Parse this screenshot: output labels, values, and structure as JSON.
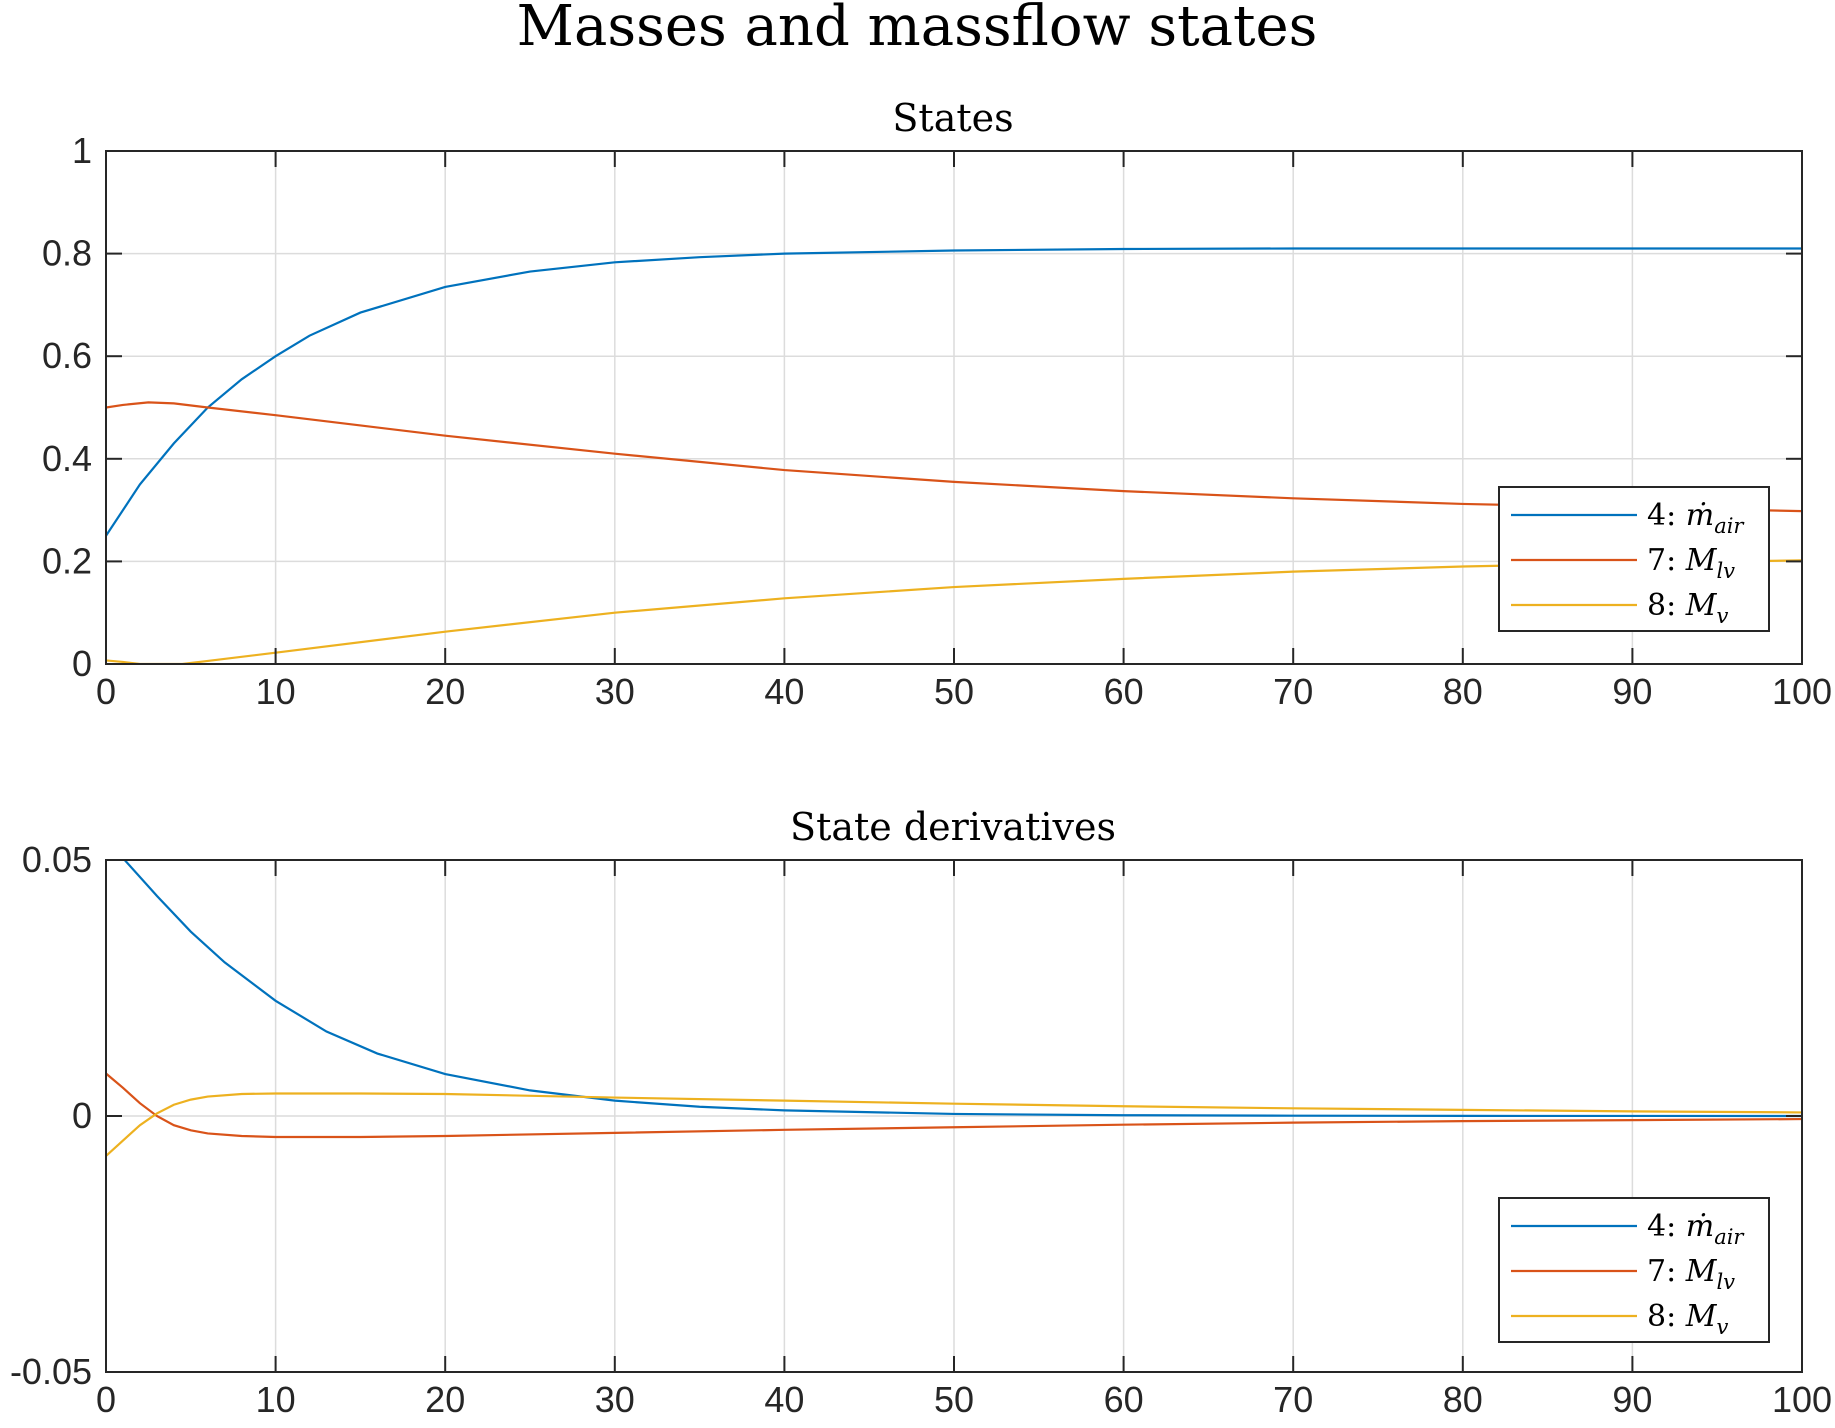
{
  "figure": {
    "suptitle": "Masses and massflow states"
  },
  "chart_data": [
    {
      "type": "line",
      "title": "States",
      "xlabel": "",
      "ylabel": "",
      "xlim": [
        0,
        100
      ],
      "ylim": [
        0,
        1
      ],
      "xticks": [
        0,
        10,
        20,
        30,
        40,
        50,
        60,
        70,
        80,
        90,
        100
      ],
      "xtick_labels": [
        "0",
        "10",
        "20",
        "30",
        "40",
        "50",
        "60",
        "70",
        "80",
        "90",
        "100"
      ],
      "yticks": [
        0,
        0.2,
        0.4,
        0.6,
        0.8,
        1
      ],
      "ytick_labels": [
        "0",
        "0.2",
        "0.4",
        "0.6",
        "0.8",
        "1"
      ],
      "grid": true,
      "legend": "right",
      "series": [
        {
          "name": "4: ṁ_air",
          "label_main": "4: ",
          "label_sym": "ṁ",
          "label_sub": "air",
          "color": "#0072BD",
          "x": [
            0,
            2,
            4,
            6,
            8,
            10,
            12,
            15,
            20,
            25,
            30,
            35,
            40,
            50,
            60,
            70,
            80,
            90,
            100
          ],
          "y": [
            0.25,
            0.35,
            0.43,
            0.5,
            0.555,
            0.6,
            0.64,
            0.685,
            0.735,
            0.765,
            0.783,
            0.793,
            0.8,
            0.806,
            0.809,
            0.81,
            0.81,
            0.81,
            0.81
          ]
        },
        {
          "name": "7: M_lv",
          "label_main": "7: ",
          "label_sym": "M",
          "label_sub": "lv",
          "color": "#D95319",
          "x": [
            0,
            1,
            2.5,
            4,
            6,
            10,
            15,
            20,
            30,
            40,
            50,
            60,
            70,
            80,
            90,
            100
          ],
          "y": [
            0.5,
            0.505,
            0.51,
            0.508,
            0.5,
            0.485,
            0.465,
            0.445,
            0.41,
            0.378,
            0.355,
            0.337,
            0.323,
            0.312,
            0.305,
            0.298
          ]
        },
        {
          "name": "8: M_v",
          "label_main": "8: ",
          "label_sym": "M",
          "label_sub": "v",
          "color": "#EDB120",
          "x": [
            0,
            1,
            2,
            4,
            4.5,
            6,
            10,
            20,
            30,
            40,
            50,
            60,
            70,
            80,
            90,
            100
          ],
          "y": [
            0.007,
            0.004,
            0,
            0,
            0,
            0.006,
            0.022,
            0.063,
            0.1,
            0.128,
            0.15,
            0.166,
            0.18,
            0.19,
            0.197,
            0.202
          ]
        }
      ]
    },
    {
      "type": "line",
      "title": "State derivatives",
      "xlabel": "",
      "ylabel": "",
      "xlim": [
        0,
        100
      ],
      "ylim": [
        -0.05,
        0.05
      ],
      "xticks": [
        0,
        10,
        20,
        30,
        40,
        50,
        60,
        70,
        80,
        90,
        100
      ],
      "xtick_labels": [
        "0",
        "10",
        "20",
        "30",
        "40",
        "50",
        "60",
        "70",
        "80",
        "90",
        "100"
      ],
      "yticks": [
        -0.05,
        0,
        0.05
      ],
      "ytick_labels": [
        "-0.05",
        "0",
        "0.05"
      ],
      "grid": true,
      "legend": "bottom-right",
      "series": [
        {
          "name": "4: ṁ_air",
          "label_main": "4: ",
          "label_sym": "ṁ",
          "label_sub": "air",
          "color": "#0072BD",
          "x": [
            1.1,
            3,
            5,
            7,
            10,
            13,
            16,
            20,
            25,
            30,
            35,
            40,
            50,
            60,
            70,
            80,
            90,
            100
          ],
          "y": [
            0.05,
            0.043,
            0.036,
            0.03,
            0.0225,
            0.0165,
            0.0122,
            0.0082,
            0.005,
            0.003,
            0.0018,
            0.0011,
            0.0004,
            0.00015,
            6e-05,
            2e-05,
            1e-05,
            0
          ]
        },
        {
          "name": "7: M_lv",
          "label_main": "7: ",
          "label_sym": "M",
          "label_sub": "lv",
          "color": "#D95319",
          "x": [
            0,
            1,
            2,
            3,
            4,
            5,
            6,
            8,
            10,
            12,
            15,
            20,
            30,
            40,
            50,
            60,
            70,
            80,
            90,
            100
          ],
          "y": [
            0.0083,
            0.0055,
            0.0025,
            0,
            -0.0018,
            -0.0028,
            -0.0034,
            -0.0039,
            -0.0041,
            -0.0041,
            -0.0041,
            -0.0039,
            -0.0033,
            -0.0027,
            -0.0022,
            -0.0017,
            -0.0013,
            -0.001,
            -0.0008,
            -0.0006
          ]
        },
        {
          "name": "8: M_v",
          "label_main": "8: ",
          "label_sym": "M",
          "label_sub": "v",
          "color": "#EDB120",
          "x": [
            0,
            1,
            2,
            3,
            4,
            5,
            6,
            8,
            10,
            12,
            15,
            20,
            30,
            40,
            50,
            60,
            70,
            80,
            90,
            100
          ],
          "y": [
            -0.0078,
            -0.0048,
            -0.0018,
            0.0005,
            0.0022,
            0.0032,
            0.0038,
            0.0043,
            0.0044,
            0.0044,
            0.0044,
            0.0043,
            0.0036,
            0.003,
            0.0024,
            0.0019,
            0.0015,
            0.0012,
            0.0009,
            0.0007
          ]
        }
      ]
    }
  ]
}
